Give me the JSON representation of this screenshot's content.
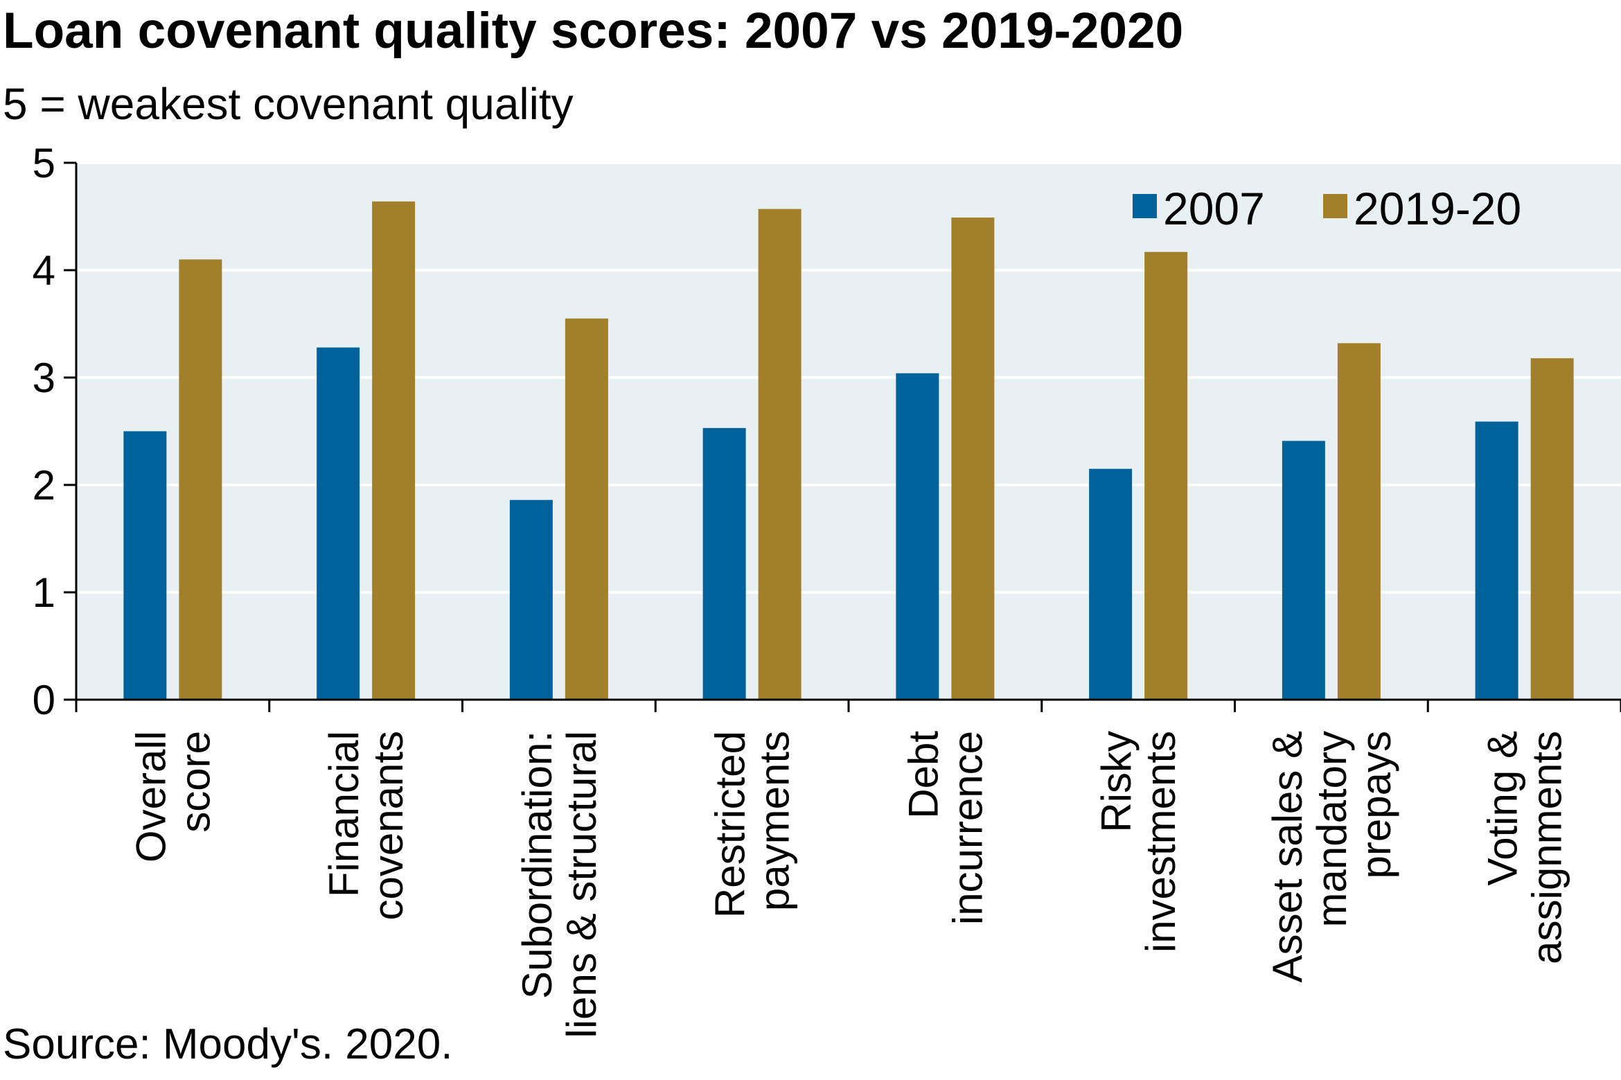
{
  "chart_data": {
    "type": "bar",
    "title": "Loan covenant quality scores: 2007 vs 2019-2020",
    "subtitle": "5 = weakest covenant quality",
    "source": "Source: Moody's. 2020.",
    "categories": [
      [
        "Overall",
        "score"
      ],
      [
        "Financial",
        "covenants"
      ],
      [
        "Subordination:",
        "liens & structural"
      ],
      [
        "Restricted",
        "payments"
      ],
      [
        "Debt",
        "incurrence"
      ],
      [
        "Risky",
        "investments"
      ],
      [
        "Asset sales &",
        "mandatory",
        "prepays"
      ],
      [
        "Voting &",
        "assignments"
      ]
    ],
    "series": [
      {
        "name": "2007",
        "color": "#00629B",
        "values": [
          2.5,
          3.28,
          1.86,
          2.53,
          3.04,
          2.15,
          2.41,
          2.59
        ]
      },
      {
        "name": "2019-20",
        "color": "#A2802B",
        "values": [
          4.1,
          4.64,
          3.55,
          4.57,
          4.49,
          4.17,
          3.32,
          3.18
        ]
      }
    ],
    "ylim": [
      0,
      5
    ],
    "yticks": [
      "0",
      "1",
      "2",
      "3",
      "4",
      "5"
    ],
    "grid": true,
    "legend_position": "top-right",
    "plot_background": "#E9F0F3"
  }
}
